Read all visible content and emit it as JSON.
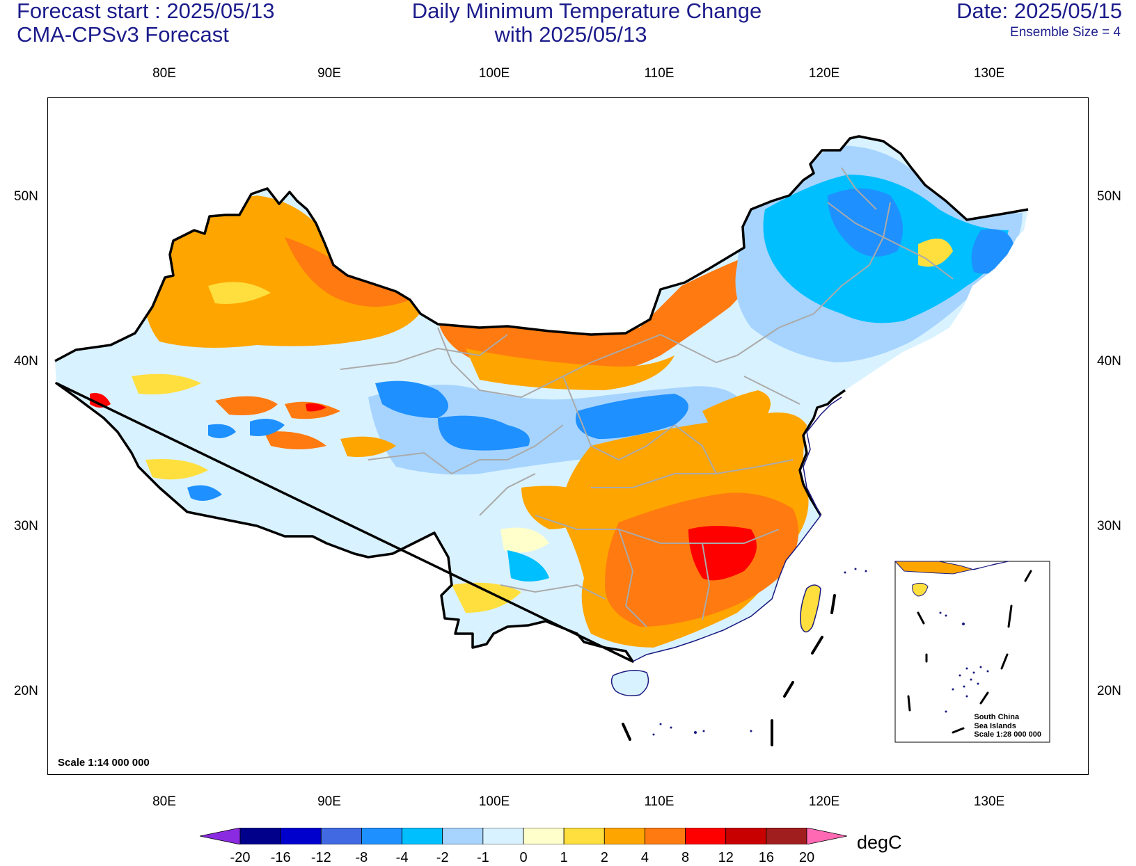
{
  "header": {
    "forecast_start": "Forecast start : 2025/05/13",
    "model": "CMA-CPSv3 Forecast",
    "title_line1": "Daily Minimum Temperature Change",
    "title_line2": "with 2025/05/13",
    "date": "Date: 2025/05/15",
    "ensemble": "Ensemble Size = 4"
  },
  "axes": {
    "lon_labels": [
      "80E",
      "90E",
      "100E",
      "110E",
      "120E",
      "130E"
    ],
    "lat_labels": [
      "50N",
      "40N",
      "30N",
      "20N"
    ]
  },
  "map": {
    "scale": "Scale 1:14 000 000",
    "inset": {
      "line1": "South China",
      "line2": "Sea Islands",
      "line3": "Scale 1:28 000 000"
    }
  },
  "colorbar": {
    "unit": "degC",
    "labels": [
      "-20",
      "-16",
      "-12",
      "-8",
      "-4",
      "-2",
      "-1",
      "0",
      "1",
      "2",
      "4",
      "8",
      "12",
      "16",
      "20"
    ],
    "colors": [
      "#8a2be2",
      "#00008b",
      "#0000cd",
      "#4169e1",
      "#1e90ff",
      "#00bfff",
      "#a6d4ff",
      "#d9f2ff",
      "#ffffcc",
      "#ffdf3d",
      "#ffa500",
      "#ff7a10",
      "#ff0000",
      "#c80000",
      "#a01e1e",
      "#ff69b4"
    ]
  }
}
